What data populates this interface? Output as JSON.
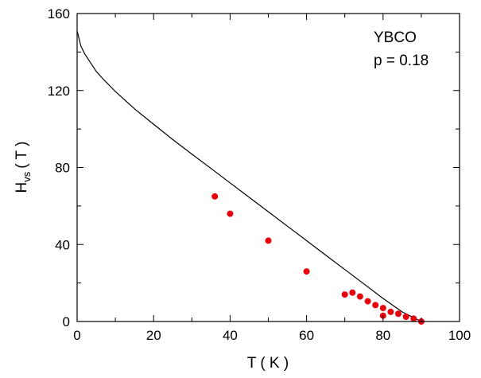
{
  "chart_data": {
    "type": "scatter",
    "title": "",
    "xlabel": "T ( K )",
    "ylabel_main": "H",
    "ylabel_sub": "vs",
    "ylabel_unit": "( T )",
    "xlim": [
      0,
      100
    ],
    "ylim": [
      0,
      160
    ],
    "xticks": [
      "0",
      "20",
      "40",
      "60",
      "80",
      "100"
    ],
    "yticks": [
      "0",
      "40",
      "80",
      "120",
      "160"
    ],
    "grid": false,
    "annotations": [
      "YBCO",
      "p = 0.18"
    ],
    "colors": {
      "points": "#e8000b",
      "curve": "#000000",
      "axes": "#000000"
    },
    "series": [
      {
        "type": "scatter",
        "x": [
          36,
          40,
          50,
          60,
          70,
          72,
          74,
          76,
          78,
          80,
          80,
          82,
          84,
          86,
          88,
          90
        ],
        "y": [
          65,
          56,
          42,
          26,
          14,
          15,
          13,
          10.5,
          8.5,
          7,
          3,
          5,
          4,
          2.5,
          1.5,
          0
        ]
      },
      {
        "type": "line",
        "x": [
          0,
          1,
          2,
          3,
          4,
          5,
          7,
          10,
          15,
          20,
          25,
          30,
          35,
          40,
          45,
          50,
          55,
          60,
          65,
          70,
          75,
          80,
          85,
          88,
          90
        ],
        "y": [
          151,
          143,
          139,
          136,
          133,
          130,
          125.5,
          119.5,
          110.5,
          102.5,
          94.5,
          87,
          79.5,
          72,
          64.5,
          57,
          49.5,
          42,
          34.5,
          27,
          19.5,
          12,
          5,
          2,
          0
        ]
      }
    ]
  }
}
